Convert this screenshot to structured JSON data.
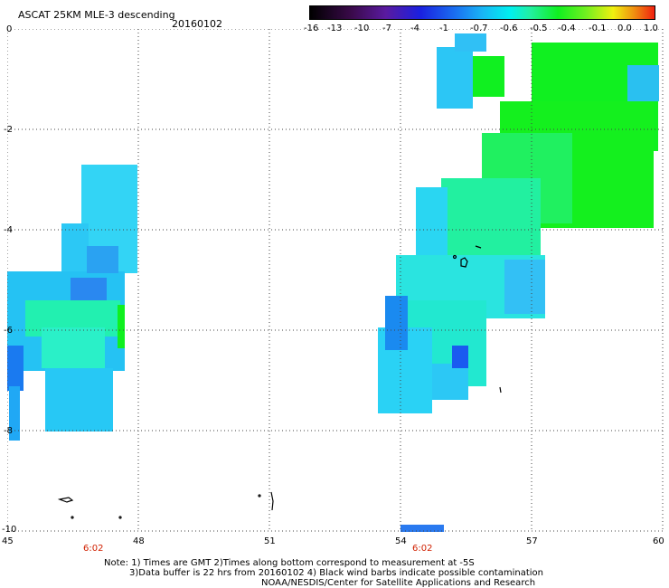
{
  "title": "ASCAT 25KM MLE-3 descending",
  "date": "20160102",
  "colorbar": {
    "labels": [
      "-16",
      "-13",
      "-10",
      "-7",
      "-4",
      "-1",
      "-0.7",
      "-0.6",
      "-0.5",
      "-0.4",
      "-0.1",
      "0.0",
      "1.0"
    ],
    "colors": [
      "#000000",
      "#5a1aa0",
      "#1a20e0",
      "#19b4f5",
      "#00f0f0",
      "#10f020",
      "#f0f010",
      "#f02010"
    ]
  },
  "axes": {
    "y_labels": [
      "0",
      "-2",
      "-4",
      "-6",
      "-8",
      "-10"
    ],
    "x_labels": [
      "45",
      "48",
      "51",
      "54",
      "57",
      "60"
    ]
  },
  "time_labels": [
    "6:02",
    "6:02"
  ],
  "notes": [
    "Note: 1) Times are GMT 2)Times along bottom correspond to measurement at -5S",
    "3)Data buffer is 22 hrs from 20160102 4) Black wind barbs indicate possible contamination",
    "NOAA/NESDIS/Center for Satellite Applications and Research"
  ]
}
